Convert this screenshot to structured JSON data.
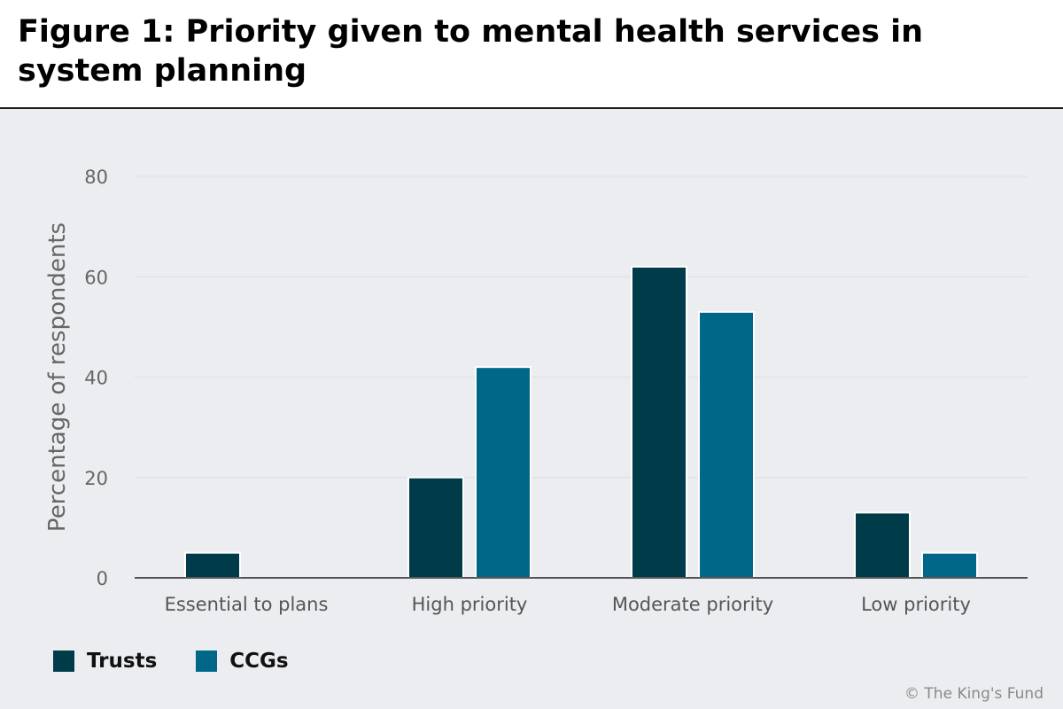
{
  "header": {
    "title": "Figure 1: Priority given to mental health services in system planning"
  },
  "chart_data": {
    "type": "bar",
    "title": "Figure 1: Priority given to mental health services in system planning",
    "xlabel": "",
    "ylabel": "Percentage of respondents",
    "categories": [
      "Essential to plans",
      "High priority",
      "Moderate priority",
      "Low priority"
    ],
    "series": [
      {
        "name": "Trusts",
        "color": "#003b4a",
        "values": [
          5,
          20,
          62,
          13
        ]
      },
      {
        "name": "CCGs",
        "color": "#006788",
        "values": [
          0,
          42,
          53,
          5
        ]
      }
    ],
    "ylim": [
      0,
      80
    ],
    "yticks": [
      0,
      20,
      40,
      60,
      80
    ],
    "grid": true,
    "legend_position": "bottom-left"
  },
  "footer": {
    "credit": "© The King's Fund"
  }
}
